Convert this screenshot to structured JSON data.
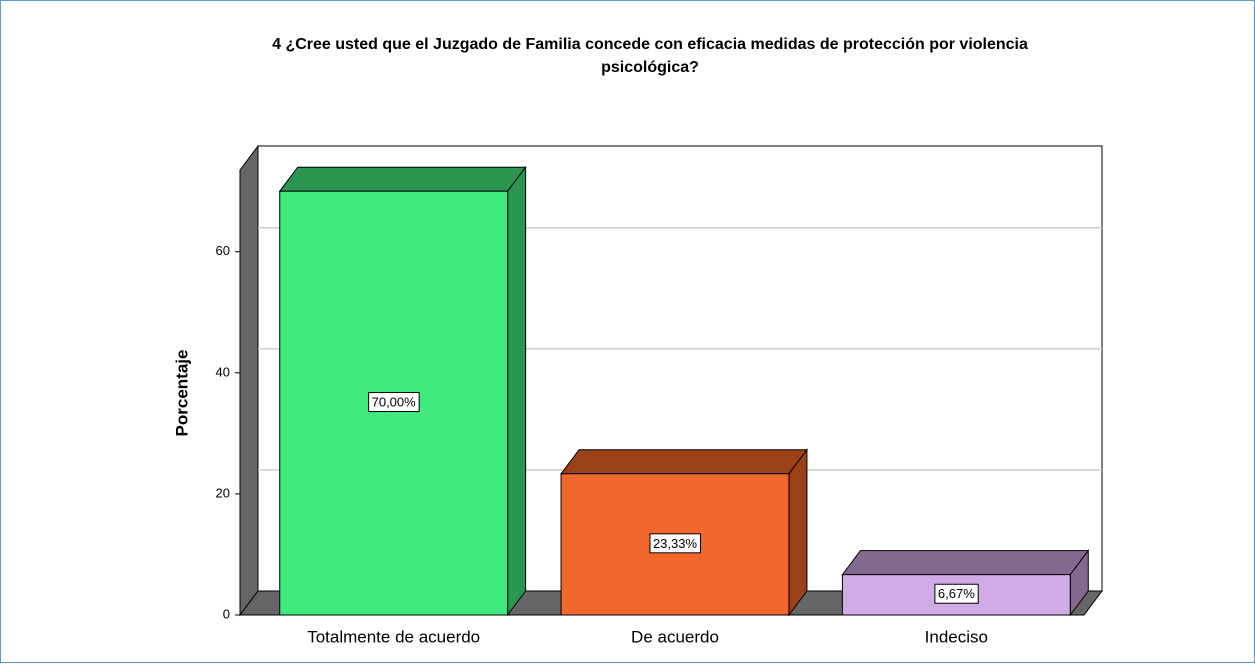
{
  "chart_data": {
    "type": "bar3d",
    "title": "4 ¿Cree usted que el Juzgado de Familia concede con eficacia medidas de protección por violencia psicológica?",
    "ylabel": "Porcentaje",
    "categories": [
      "Totalmente de acuerdo",
      "De acuerdo",
      "Indeciso"
    ],
    "values": [
      70.0,
      23.33,
      6.67
    ],
    "value_labels": [
      "70,00%",
      "23,33%",
      "6,67%"
    ],
    "colors": [
      "#41ea7e",
      "#f2682c",
      "#d1abe6"
    ],
    "side_colors": [
      "#2b9552",
      "#9a4118",
      "#83698f"
    ],
    "ylim": [
      0,
      73.5
    ],
    "yticks": [
      0,
      20,
      40,
      60
    ],
    "grid": true
  }
}
